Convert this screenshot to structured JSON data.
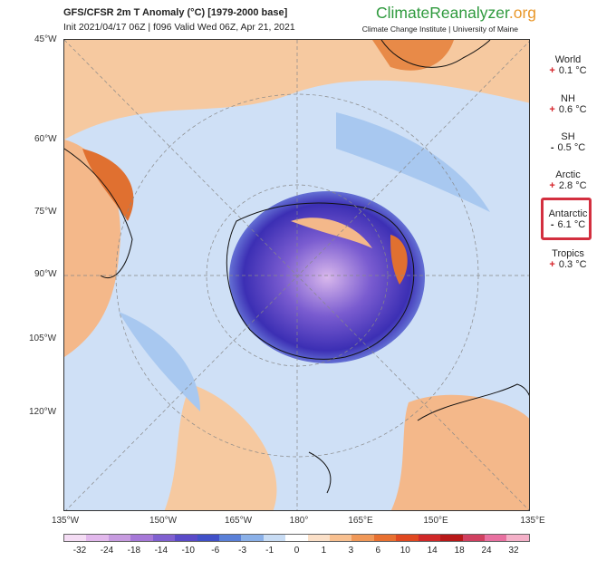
{
  "header": {
    "title": "GFS/CFSR 2m T Anomaly (°C) [1979-2000 base]",
    "subtitle": "Init 2021/04/17 06Z | f096 Valid Wed 06Z, Apr 21, 2021",
    "brand_main": "ClimateReanalyzer",
    "brand_org": ".org",
    "brand_sub": "Climate Change Institute | University of Maine"
  },
  "map": {
    "projection": "south polar stereographic",
    "lat_labels": [
      "45°W",
      "60°W",
      "75°W",
      "90°W",
      "105°W",
      "120°W"
    ],
    "lon_labels": [
      "135°W",
      "150°W",
      "165°W",
      "180°",
      "165°E",
      "150°E",
      "135°E"
    ]
  },
  "regions": [
    {
      "name": "World",
      "sign": "+",
      "value": "0.1 °C"
    },
    {
      "name": "NH",
      "sign": "+",
      "value": "0.6 °C"
    },
    {
      "name": "SH",
      "sign": "-",
      "value": "0.5 °C"
    },
    {
      "name": "Arctic",
      "sign": "+",
      "value": "2.8 °C"
    },
    {
      "name": "Antarctic",
      "sign": "-",
      "value": "6.1 °C",
      "highlighted": true
    },
    {
      "name": "Tropics",
      "sign": "+",
      "value": "0.3 °C"
    }
  ],
  "colorbar": {
    "labels": [
      "-32",
      "-24",
      "-18",
      "-14",
      "-10",
      "-6",
      "-3",
      "-1",
      "0",
      "1",
      "3",
      "6",
      "10",
      "14",
      "18",
      "24",
      "32"
    ],
    "colors": [
      "#f4dcf4",
      "#e2b8ec",
      "#c79be0",
      "#a678d8",
      "#8060d0",
      "#5a4ac8",
      "#4050c8",
      "#5a80d8",
      "#8ab0e8",
      "#c8dcf4",
      "#ffffff",
      "#fbe0c8",
      "#f8c090",
      "#f09858",
      "#e87030",
      "#e04820",
      "#d02828",
      "#b81818",
      "#d04060",
      "#e870a0",
      "#f4b0c8"
    ],
    "highlight_color": "#d32f3f"
  }
}
